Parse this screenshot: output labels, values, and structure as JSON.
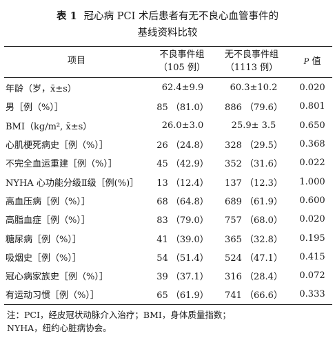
{
  "title": {
    "tag": "表 1",
    "line1": "冠心病 PCI 术后患者有无不良心血管事件的",
    "line2": "基线资料比较"
  },
  "header": {
    "item": "项目",
    "group_a_line1": "不良事件组",
    "group_a_line2": "（105 例）",
    "group_b_line1": "无不良事件组",
    "group_b_line2": "（1113 例）",
    "p_label": "P",
    "p_suffix": " 值"
  },
  "rows": [
    {
      "item": "年龄（岁，x̄±s）",
      "a": "62.4±9.9",
      "b": "60.3±10.2",
      "p": "0.020"
    },
    {
      "item": "男［例（%）］",
      "a": "85 （81.0）",
      "b": "886 （79.6）",
      "p": "0.801"
    },
    {
      "item": "BMI（kg/m², x̄±s）",
      "a": "26.0±3.0",
      "b": "25.9± 3.5",
      "p": "0.650"
    },
    {
      "item": "心肌梗死病史［例（%）］",
      "a": "26 （24.8）",
      "b": "328 （29.5）",
      "p": "0.368"
    },
    {
      "item": "不完全血运重建［例（%）］",
      "a": "45 （42.9）",
      "b": "352 （31.6）",
      "p": "0.022"
    },
    {
      "item": "NYHA 心功能分级Ⅱ级［例(%)］",
      "a": "13 （12.4）",
      "b": "137 （12.3）",
      "p": "1.000"
    },
    {
      "item": "高血压病［例（%）］",
      "a": "68 （64.8）",
      "b": "689 （61.9）",
      "p": "0.600"
    },
    {
      "item": "高脂血症［例（%）］",
      "a": "83 （79.0）",
      "b": "757 （68.0）",
      "p": "0.020"
    },
    {
      "item": "糖尿病［例（%）］",
      "a": "41 （39.0）",
      "b": "365 （32.8）",
      "p": "0.195"
    },
    {
      "item": "吸烟史［例（%）］",
      "a": "54 （51.4）",
      "b": "524 （47.1）",
      "p": "0.415"
    },
    {
      "item": "冠心病家族史［例（%）］",
      "a": "39 （37.1）",
      "b": "316 （28.4）",
      "p": "0.072"
    },
    {
      "item": "有运动习惯［例（%）］",
      "a": "65 （61.9）",
      "b": "741 （66.6）",
      "p": "0.333"
    }
  ],
  "note": {
    "line1": "注：PCI，经皮冠状动脉介入治疗；BMI，身体质量指数；",
    "line2": "NYHA，纽约心脏病协会。"
  }
}
